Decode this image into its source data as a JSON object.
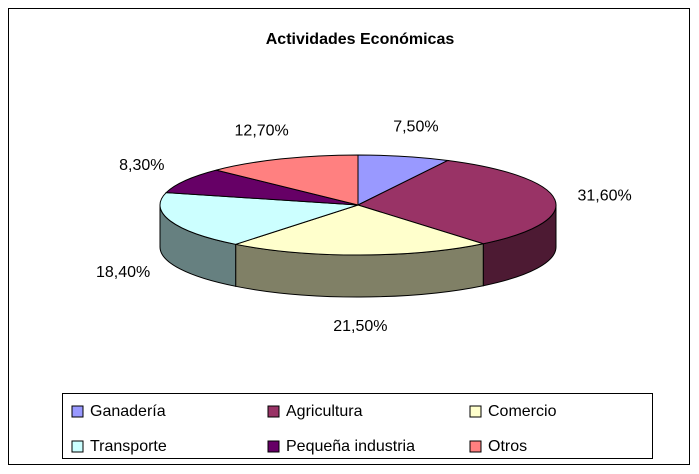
{
  "chart_data": {
    "type": "pie3d",
    "title": "Actividades Económicas",
    "categories": [
      "Ganadería",
      "Agricultura",
      "Comercio",
      "Transporte",
      "Pequeña industria",
      "Otros"
    ],
    "values": [
      7.5,
      31.6,
      21.5,
      18.4,
      8.3,
      12.7
    ],
    "value_labels": [
      "7,50%",
      "31,60%",
      "21,50%",
      "18,40%",
      "8,30%",
      "12,70%"
    ],
    "colors": [
      "#9999ff",
      "#993366",
      "#ffffcc",
      "#ccffff",
      "#660066",
      "#ff8080"
    ],
    "legend": "bottom"
  }
}
